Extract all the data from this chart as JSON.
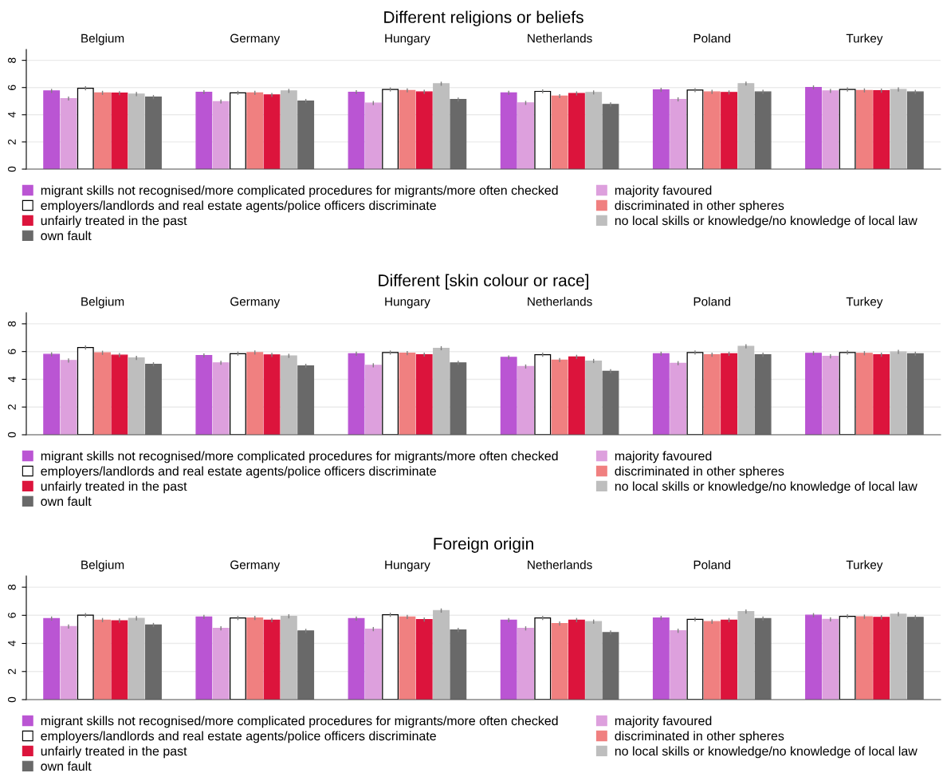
{
  "chart_data": [
    {
      "type": "bar",
      "title": "Different religions or beliefs",
      "categories": [
        "Belgium",
        "Germany",
        "Hungary",
        "Netherlands",
        "Poland",
        "Turkey"
      ],
      "ylim": [
        0,
        8.8
      ],
      "yticks": [
        0,
        2,
        4,
        6,
        8
      ],
      "grid": "y",
      "legend": "bottom",
      "series": [
        {
          "name": "migrant skills not recognised/more complicated procedures for migrants/more often checked",
          "color": "#ba55d3",
          "values": [
            5.75,
            5.66,
            5.66,
            5.61,
            5.83,
            6.01
          ],
          "errors": [
            0.15,
            0.15,
            0.15,
            0.15,
            0.15,
            0.15
          ]
        },
        {
          "name": "majority favoured",
          "color": "#dda0dd",
          "values": [
            5.19,
            4.97,
            4.86,
            4.87,
            5.13,
            5.75
          ],
          "errors": [
            0.15,
            0.15,
            0.15,
            0.15,
            0.15,
            0.15
          ]
        },
        {
          "name": "employers/landlords and real estate agents/police officers discriminate",
          "color": "#ffffff",
          "values": [
            5.95,
            5.61,
            5.86,
            5.72,
            5.81,
            5.86
          ],
          "errors": [
            0.15,
            0.15,
            0.15,
            0.15,
            0.15,
            0.15
          ]
        },
        {
          "name": "discriminated in other spheres",
          "color": "#f08080",
          "values": [
            5.61,
            5.61,
            5.79,
            5.37,
            5.68,
            5.79
          ],
          "errors": [
            0.15,
            0.15,
            0.15,
            0.15,
            0.15,
            0.15
          ]
        },
        {
          "name": "unfairly treated in the past",
          "color": "#dc143c",
          "values": [
            5.59,
            5.46,
            5.68,
            5.57,
            5.64,
            5.77
          ],
          "errors": [
            0.15,
            0.15,
            0.15,
            0.15,
            0.15,
            0.15
          ]
        },
        {
          "name": "no local skills or knowledge/no knowledge of local law",
          "color": "#bebebe",
          "values": [
            5.52,
            5.75,
            6.28,
            5.64,
            6.29,
            5.86
          ],
          "errors": [
            0.15,
            0.15,
            0.15,
            0.15,
            0.15,
            0.15
          ]
        },
        {
          "name": "own fault",
          "color": "#696969",
          "values": [
            5.3,
            5.01,
            5.12,
            4.76,
            5.68,
            5.68
          ],
          "errors": [
            0.15,
            0.15,
            0.15,
            0.15,
            0.15,
            0.15
          ]
        }
      ]
    },
    {
      "type": "bar",
      "title": "Different [skin colour or race]",
      "categories": [
        "Belgium",
        "Germany",
        "Hungary",
        "Netherlands",
        "Poland",
        "Turkey"
      ],
      "ylim": [
        0,
        8.8
      ],
      "yticks": [
        0,
        2,
        4,
        6,
        8
      ],
      "grid": "y",
      "legend": "bottom",
      "series": [
        {
          "name": "migrant skills not recognised/more complicated procedures for migrants/more often checked",
          "color": "#ba55d3",
          "values": [
            5.8,
            5.71,
            5.85,
            5.58,
            5.84,
            5.88
          ],
          "errors": [
            0.15,
            0.15,
            0.15,
            0.15,
            0.15,
            0.15
          ]
        },
        {
          "name": "majority favoured",
          "color": "#dda0dd",
          "values": [
            5.36,
            5.19,
            5.01,
            4.92,
            5.16,
            5.66
          ],
          "errors": [
            0.15,
            0.15,
            0.15,
            0.15,
            0.15,
            0.15
          ]
        },
        {
          "name": "employers/landlords and real estate agents/police officers discriminate",
          "color": "#ffffff",
          "values": [
            6.29,
            5.85,
            5.93,
            5.77,
            5.93,
            5.93
          ],
          "errors": [
            0.15,
            0.15,
            0.15,
            0.15,
            0.15,
            0.15
          ]
        },
        {
          "name": "discriminated in other spheres",
          "color": "#f08080",
          "values": [
            5.91,
            5.93,
            5.89,
            5.38,
            5.77,
            5.88
          ],
          "errors": [
            0.15,
            0.15,
            0.15,
            0.15,
            0.15,
            0.15
          ]
        },
        {
          "name": "unfairly treated in the past",
          "color": "#dc143c",
          "values": [
            5.74,
            5.76,
            5.78,
            5.62,
            5.84,
            5.77
          ],
          "errors": [
            0.15,
            0.15,
            0.15,
            0.15,
            0.15,
            0.15
          ]
        },
        {
          "name": "no local skills or knowledge/no knowledge of local law",
          "color": "#bebebe",
          "values": [
            5.54,
            5.69,
            6.24,
            5.32,
            6.38,
            5.97
          ],
          "errors": [
            0.15,
            0.15,
            0.15,
            0.15,
            0.15,
            0.15
          ]
        },
        {
          "name": "own fault",
          "color": "#696969",
          "values": [
            5.08,
            4.97,
            5.19,
            4.58,
            5.77,
            5.84
          ],
          "errors": [
            0.15,
            0.15,
            0.15,
            0.15,
            0.15,
            0.15
          ]
        }
      ]
    },
    {
      "type": "bar",
      "title": "Foreign origin",
      "categories": [
        "Belgium",
        "Germany",
        "Hungary",
        "Netherlands",
        "Poland",
        "Turkey"
      ],
      "ylim": [
        0,
        8.8
      ],
      "yticks": [
        0,
        2,
        4,
        6,
        8
      ],
      "grid": "y",
      "legend": "bottom",
      "series": [
        {
          "name": "migrant skills not recognised/more complicated procedures for migrants/more often checked",
          "color": "#ba55d3",
          "values": [
            5.77,
            5.88,
            5.77,
            5.66,
            5.81,
            6.01
          ],
          "errors": [
            0.15,
            0.15,
            0.15,
            0.15,
            0.15,
            0.15
          ]
        },
        {
          "name": "majority favoured",
          "color": "#dda0dd",
          "values": [
            5.2,
            5.07,
            5.02,
            5.07,
            4.9,
            5.71
          ],
          "errors": [
            0.15,
            0.15,
            0.15,
            0.15,
            0.15,
            0.15
          ]
        },
        {
          "name": "employers/landlords and real estate agents/police officers discriminate",
          "color": "#ffffff",
          "values": [
            6.01,
            5.81,
            6.04,
            5.81,
            5.71,
            5.92
          ],
          "errors": [
            0.15,
            0.15,
            0.15,
            0.15,
            0.15,
            0.15
          ]
        },
        {
          "name": "discriminated in other spheres",
          "color": "#f08080",
          "values": [
            5.66,
            5.81,
            5.88,
            5.42,
            5.55,
            5.9
          ],
          "errors": [
            0.15,
            0.15,
            0.15,
            0.15,
            0.15,
            0.15
          ]
        },
        {
          "name": "unfairly treated in the past",
          "color": "#dc143c",
          "values": [
            5.62,
            5.66,
            5.7,
            5.66,
            5.66,
            5.86
          ],
          "errors": [
            0.15,
            0.15,
            0.15,
            0.15,
            0.15,
            0.15
          ]
        },
        {
          "name": "no local skills or knowledge/no knowledge of local law",
          "color": "#bebebe",
          "values": [
            5.79,
            5.93,
            6.34,
            5.55,
            6.27,
            6.08
          ],
          "errors": [
            0.15,
            0.15,
            0.15,
            0.15,
            0.15,
            0.15
          ]
        },
        {
          "name": "own fault",
          "color": "#696969",
          "values": [
            5.31,
            4.89,
            4.96,
            4.77,
            5.77,
            5.86
          ],
          "errors": [
            0.15,
            0.15,
            0.15,
            0.15,
            0.15,
            0.15
          ]
        }
      ]
    }
  ]
}
